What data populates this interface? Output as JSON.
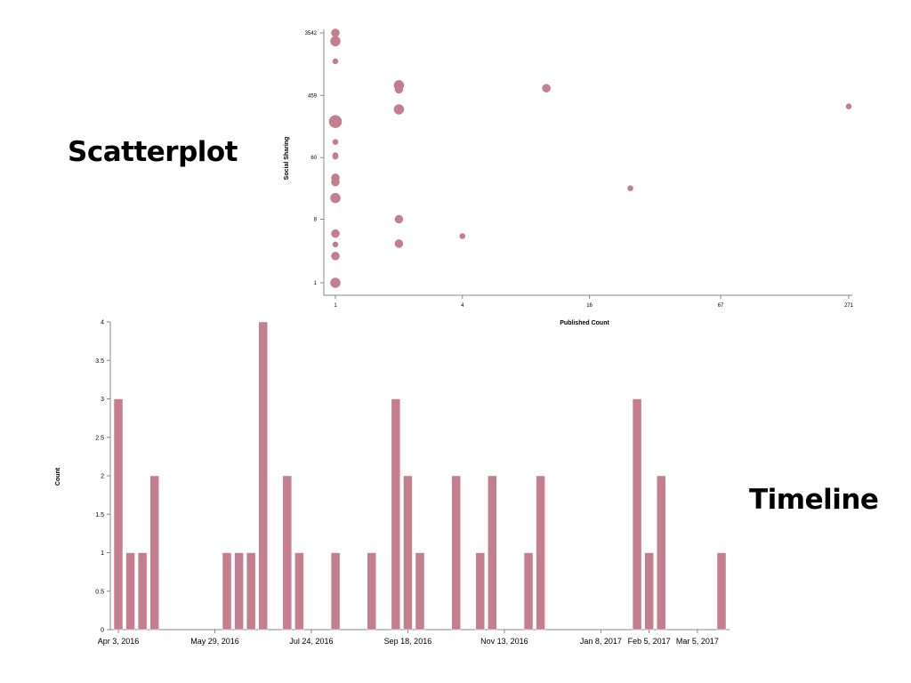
{
  "slide": {
    "scatter_label": "Scatterplot",
    "timeline_label": "Timeline"
  },
  "colors": {
    "mark": "#c47f8f",
    "mark_stroke": "#b86f80",
    "axis": "#888888"
  },
  "chart_data": [
    {
      "type": "scatter",
      "title": "",
      "xlabel": "Published Count",
      "ylabel": "Social Sharing",
      "xscale": "log",
      "yscale": "log",
      "xlim": [
        1,
        271
      ],
      "ylim": [
        1,
        3542
      ],
      "xticks": [
        1,
        4,
        16,
        67,
        271
      ],
      "yticks": [
        1,
        8,
        60,
        459,
        3542
      ],
      "grid": false,
      "points": [
        {
          "x": 1,
          "y": 3542,
          "size": 2
        },
        {
          "x": 1,
          "y": 2700,
          "size": 3
        },
        {
          "x": 1,
          "y": 1400,
          "size": 1
        },
        {
          "x": 1,
          "y": 195,
          "size": 4
        },
        {
          "x": 1,
          "y": 100,
          "size": 1
        },
        {
          "x": 1,
          "y": 65,
          "size": 1
        },
        {
          "x": 1,
          "y": 62,
          "size": 1
        },
        {
          "x": 1,
          "y": 31,
          "size": 2
        },
        {
          "x": 1,
          "y": 27,
          "size": 2
        },
        {
          "x": 1,
          "y": 16,
          "size": 3
        },
        {
          "x": 1,
          "y": 5,
          "size": 2
        },
        {
          "x": 1,
          "y": 3.5,
          "size": 1
        },
        {
          "x": 1,
          "y": 2.4,
          "size": 2
        },
        {
          "x": 1,
          "y": 1,
          "size": 3
        },
        {
          "x": 2,
          "y": 640,
          "size": 3
        },
        {
          "x": 2,
          "y": 560,
          "size": 2
        },
        {
          "x": 2,
          "y": 290,
          "size": 3
        },
        {
          "x": 2,
          "y": 8,
          "size": 2
        },
        {
          "x": 2,
          "y": 3.6,
          "size": 2
        },
        {
          "x": 4,
          "y": 4.6,
          "size": 1
        },
        {
          "x": 10,
          "y": 580,
          "size": 2
        },
        {
          "x": 25,
          "y": 22,
          "size": 1
        },
        {
          "x": 271,
          "y": 320,
          "size": 1
        }
      ]
    },
    {
      "type": "bar",
      "title": "",
      "xlabel": "",
      "ylabel": "Count",
      "ylim": [
        0,
        4
      ],
      "yticks": [
        0,
        0.5,
        1,
        1.5,
        2,
        2.5,
        3,
        3.5,
        4
      ],
      "grid": false,
      "bin": "week",
      "xlim": [
        "2016-04-03",
        "2017-03-19"
      ],
      "xtick_labels": [
        {
          "date": "2016-04-03",
          "label": "Apr 3, 2016"
        },
        {
          "date": "2016-05-29",
          "label": "May 29, 2016"
        },
        {
          "date": "2016-07-24",
          "label": "Jul 24, 2016"
        },
        {
          "date": "2016-09-18",
          "label": "Sep 18, 2016"
        },
        {
          "date": "2016-11-13",
          "label": "Nov 13, 2016"
        },
        {
          "date": "2017-01-08",
          "label": "Jan 8, 2017"
        },
        {
          "date": "2017-02-05",
          "label": "Feb 5, 2017"
        },
        {
          "date": "2017-03-05",
          "label": "Mar 5, 2017"
        }
      ],
      "bars": [
        {
          "date": "2016-04-03",
          "value": 3
        },
        {
          "date": "2016-04-10",
          "value": 1
        },
        {
          "date": "2016-04-17",
          "value": 1
        },
        {
          "date": "2016-04-24",
          "value": 2
        },
        {
          "date": "2016-06-05",
          "value": 1
        },
        {
          "date": "2016-06-12",
          "value": 1
        },
        {
          "date": "2016-06-19",
          "value": 1
        },
        {
          "date": "2016-06-26",
          "value": 4
        },
        {
          "date": "2016-07-10",
          "value": 2
        },
        {
          "date": "2016-07-17",
          "value": 1
        },
        {
          "date": "2016-08-07",
          "value": 1
        },
        {
          "date": "2016-08-28",
          "value": 1
        },
        {
          "date": "2016-09-11",
          "value": 3
        },
        {
          "date": "2016-09-18",
          "value": 2
        },
        {
          "date": "2016-09-25",
          "value": 1
        },
        {
          "date": "2016-10-16",
          "value": 2
        },
        {
          "date": "2016-10-30",
          "value": 1
        },
        {
          "date": "2016-11-06",
          "value": 2
        },
        {
          "date": "2016-11-27",
          "value": 1
        },
        {
          "date": "2016-12-04",
          "value": 2
        },
        {
          "date": "2017-01-29",
          "value": 3
        },
        {
          "date": "2017-02-05",
          "value": 1
        },
        {
          "date": "2017-02-12",
          "value": 2
        },
        {
          "date": "2017-03-19",
          "value": 1
        }
      ]
    }
  ]
}
